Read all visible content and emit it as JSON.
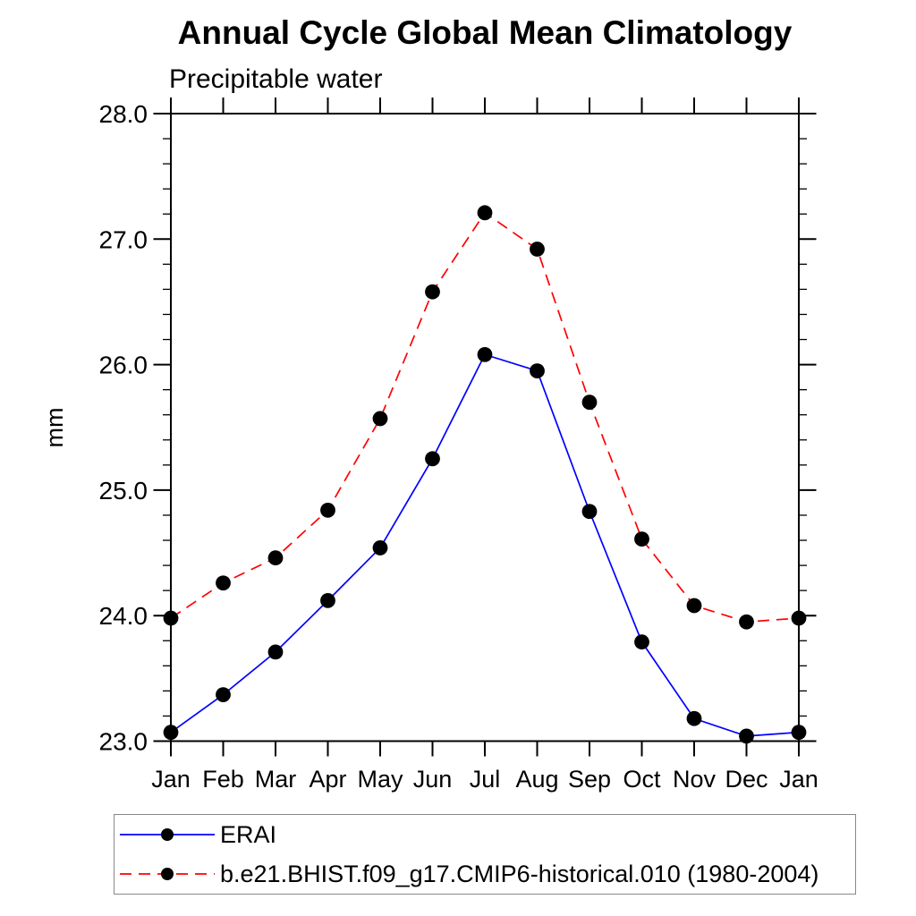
{
  "chart_data": {
    "type": "line",
    "title": "Annual Cycle Global Mean Climatology",
    "subtitle": "Precipitable water",
    "ylabel": "mm",
    "ylim": [
      23.0,
      28.0
    ],
    "y_major_step": 1.0,
    "y_minor_step": 0.2,
    "y_tick_labels": [
      "23.0",
      "24.0",
      "25.0",
      "26.0",
      "27.0",
      "28.0"
    ],
    "x_tick_labels": [
      "Jan",
      "Feb",
      "Mar",
      "Apr",
      "May",
      "Jun",
      "Jul",
      "Aug",
      "Sep",
      "Oct",
      "Nov",
      "Dec",
      "Jan"
    ],
    "grid": false,
    "legend_position": "bottom",
    "axis_color": "#000000",
    "background_color": "#ffffff",
    "series": [
      {
        "name": "ERAI",
        "color": "#0000ff",
        "line_style": "solid",
        "marker": "circle",
        "marker_color": "#000000",
        "values": [
          23.07,
          23.37,
          23.71,
          24.12,
          24.54,
          25.25,
          26.08,
          25.95,
          24.83,
          23.79,
          23.18,
          23.04,
          23.07
        ]
      },
      {
        "name": "b.e21.BHIST.f09_g17.CMIP6-historical.010 (1980-2004)",
        "color": "#ff0000",
        "line_style": "dashed",
        "marker": "circle",
        "marker_color": "#000000",
        "values": [
          23.98,
          24.26,
          24.46,
          24.84,
          25.57,
          26.58,
          27.21,
          26.92,
          25.7,
          24.61,
          24.08,
          23.95,
          23.98
        ]
      }
    ]
  }
}
